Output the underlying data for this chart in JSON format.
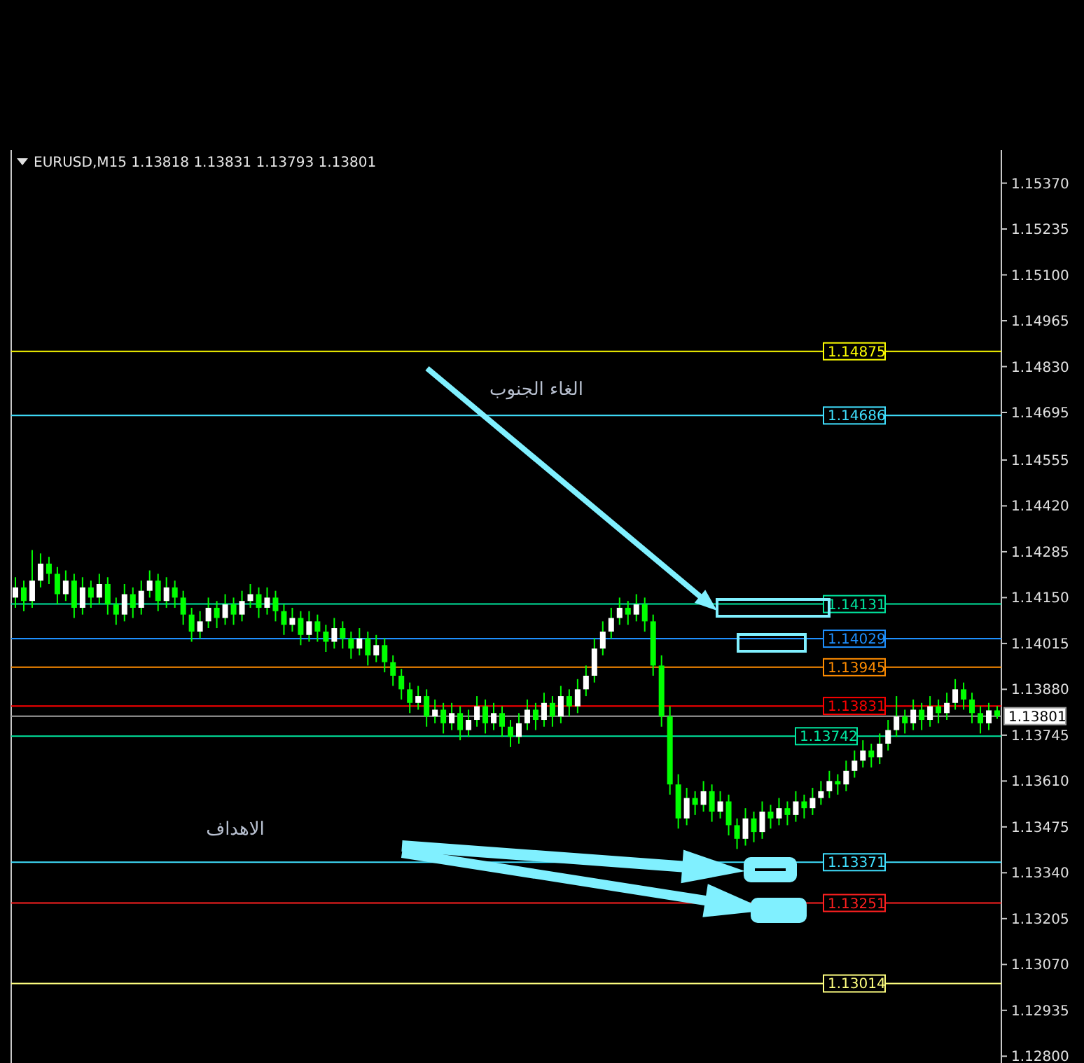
{
  "chart_data": {
    "type": "candlestick",
    "title": "EURUSD,M15  1.13818 1.13831 1.13793 1.13801",
    "annotations": [
      "الغاء الجنوب",
      "الاهداف"
    ],
    "tick_labels": "y",
    "ylim": [
      1.1278,
      1.15468
    ],
    "yticks": [
      {
        "value": 1.1537,
        "label": "1.15370"
      },
      {
        "value": 1.15235,
        "label": "1.15235"
      },
      {
        "value": 1.151,
        "label": "1.15100"
      },
      {
        "value": 1.14965,
        "label": "1.14965"
      },
      {
        "value": 1.1483,
        "label": "1.14830"
      },
      {
        "value": 1.14695,
        "label": "1.14695"
      },
      {
        "value": 1.14555,
        "label": "1.14555"
      },
      {
        "value": 1.1442,
        "label": "1.14420"
      },
      {
        "value": 1.14285,
        "label": "1.14285"
      },
      {
        "value": 1.1415,
        "label": "1.14150"
      },
      {
        "value": 1.14015,
        "label": "1.14015"
      },
      {
        "value": 1.1388,
        "label": "1.13880"
      },
      {
        "value": 1.13745,
        "label": "1.13745"
      },
      {
        "value": 1.1361,
        "label": "1.13610"
      },
      {
        "value": 1.13475,
        "label": "1.13475"
      },
      {
        "value": 1.1334,
        "label": "1.13340"
      },
      {
        "value": 1.13205,
        "label": "1.13205"
      },
      {
        "value": 1.1307,
        "label": "1.13070"
      },
      {
        "value": 1.12935,
        "label": "1.12935"
      },
      {
        "value": 1.128,
        "label": "1.12800"
      }
    ],
    "categories": [
      null,
      null,
      null,
      null,
      null,
      null,
      null,
      null,
      null,
      null,
      null,
      null,
      null,
      null,
      null,
      null,
      null,
      null,
      null,
      null,
      null,
      null,
      null,
      null,
      null,
      null,
      null,
      null,
      null,
      null,
      null,
      null,
      null,
      null,
      null,
      null,
      null,
      null,
      null,
      null,
      null,
      null,
      null,
      null,
      null,
      null,
      null,
      null,
      null,
      null,
      null,
      null,
      null,
      null,
      null,
      null,
      null,
      null,
      null,
      null,
      null,
      null,
      null,
      null,
      null,
      null,
      null,
      null,
      null,
      null,
      null,
      null,
      null,
      null,
      null,
      null,
      null,
      null,
      null,
      null,
      null,
      null,
      null,
      null,
      null,
      null,
      null,
      null,
      null,
      null,
      null,
      null,
      null,
      null,
      null,
      null,
      null,
      null,
      null,
      null,
      null,
      null,
      null,
      null,
      null,
      null,
      null,
      null,
      null,
      null,
      null,
      null,
      null,
      null,
      null,
      null,
      null,
      null
    ],
    "ohlc": [
      [
        1.1415,
        1.1421,
        1.1412,
        1.1418
      ],
      [
        1.1418,
        1.142,
        1.1411,
        1.1414
      ],
      [
        1.1414,
        1.1429,
        1.1412,
        1.142
      ],
      [
        1.142,
        1.1428,
        1.1418,
        1.1425
      ],
      [
        1.1425,
        1.1427,
        1.1419,
        1.1422
      ],
      [
        1.1422,
        1.1424,
        1.1413,
        1.1416
      ],
      [
        1.1416,
        1.1423,
        1.1414,
        1.142
      ],
      [
        1.142,
        1.1422,
        1.1409,
        1.1412
      ],
      [
        1.1412,
        1.1421,
        1.141,
        1.1418
      ],
      [
        1.1418,
        1.142,
        1.1412,
        1.1415
      ],
      [
        1.1415,
        1.1422,
        1.1413,
        1.1419
      ],
      [
        1.1419,
        1.1421,
        1.141,
        1.1413
      ],
      [
        1.1413,
        1.1415,
        1.1407,
        1.141
      ],
      [
        1.141,
        1.1419,
        1.1408,
        1.1416
      ],
      [
        1.1416,
        1.1418,
        1.1409,
        1.1412
      ],
      [
        1.1412,
        1.142,
        1.141,
        1.1417
      ],
      [
        1.1417,
        1.1423,
        1.1415,
        1.142
      ],
      [
        1.142,
        1.1422,
        1.1411,
        1.1414
      ],
      [
        1.1414,
        1.1421,
        1.1412,
        1.1418
      ],
      [
        1.1418,
        1.142,
        1.1412,
        1.1415
      ],
      [
        1.1415,
        1.1417,
        1.1407,
        1.141
      ],
      [
        1.141,
        1.1412,
        1.1402,
        1.1405
      ],
      [
        1.1405,
        1.1411,
        1.1403,
        1.1408
      ],
      [
        1.1408,
        1.1415,
        1.1406,
        1.1412
      ],
      [
        1.1412,
        1.1414,
        1.1406,
        1.1409
      ],
      [
        1.1409,
        1.1416,
        1.1407,
        1.1413
      ],
      [
        1.1413,
        1.1415,
        1.1407,
        1.141
      ],
      [
        1.141,
        1.1417,
        1.1408,
        1.1414
      ],
      [
        1.1414,
        1.1419,
        1.1412,
        1.1416
      ],
      [
        1.1416,
        1.1418,
        1.1409,
        1.1412
      ],
      [
        1.1412,
        1.1418,
        1.141,
        1.1415
      ],
      [
        1.1415,
        1.1417,
        1.1408,
        1.1411
      ],
      [
        1.1411,
        1.1413,
        1.1404,
        1.1407
      ],
      [
        1.1407,
        1.1412,
        1.1405,
        1.1409
      ],
      [
        1.1409,
        1.1411,
        1.1401,
        1.1404
      ],
      [
        1.1404,
        1.1411,
        1.1402,
        1.1408
      ],
      [
        1.1408,
        1.141,
        1.1402,
        1.1405
      ],
      [
        1.1405,
        1.1407,
        1.1399,
        1.1402
      ],
      [
        1.1402,
        1.1409,
        1.14,
        1.1406
      ],
      [
        1.1406,
        1.1408,
        1.14,
        1.1403
      ],
      [
        1.1403,
        1.1405,
        1.1397,
        1.14
      ],
      [
        1.14,
        1.1406,
        1.1398,
        1.1403
      ],
      [
        1.1403,
        1.1405,
        1.1395,
        1.1398
      ],
      [
        1.1398,
        1.1404,
        1.1396,
        1.1401
      ],
      [
        1.1401,
        1.1403,
        1.1393,
        1.1396
      ],
      [
        1.1396,
        1.1398,
        1.1389,
        1.1392
      ],
      [
        1.1392,
        1.1394,
        1.1385,
        1.1388
      ],
      [
        1.1388,
        1.139,
        1.1381,
        1.1384
      ],
      [
        1.1384,
        1.1389,
        1.1382,
        1.1386
      ],
      [
        1.1386,
        1.1388,
        1.1377,
        1.138
      ],
      [
        1.138,
        1.1385,
        1.1378,
        1.1382
      ],
      [
        1.1382,
        1.1384,
        1.1375,
        1.1378
      ],
      [
        1.1378,
        1.1384,
        1.1376,
        1.1381
      ],
      [
        1.1381,
        1.1383,
        1.1373,
        1.1376
      ],
      [
        1.1376,
        1.1382,
        1.1374,
        1.1379
      ],
      [
        1.1379,
        1.1386,
        1.1377,
        1.1383
      ],
      [
        1.1383,
        1.1385,
        1.1375,
        1.1378
      ],
      [
        1.1378,
        1.1384,
        1.1376,
        1.1381
      ],
      [
        1.1381,
        1.1383,
        1.1374,
        1.1377
      ],
      [
        1.1377,
        1.1379,
        1.1371,
        1.1374
      ],
      [
        1.1374,
        1.1381,
        1.1372,
        1.1378
      ],
      [
        1.1378,
        1.1385,
        1.1376,
        1.1382
      ],
      [
        1.1382,
        1.1384,
        1.1376,
        1.1379
      ],
      [
        1.1379,
        1.1387,
        1.1377,
        1.1384
      ],
      [
        1.1384,
        1.1386,
        1.1377,
        1.138
      ],
      [
        1.138,
        1.1389,
        1.1378,
        1.1386
      ],
      [
        1.1386,
        1.1388,
        1.138,
        1.1383
      ],
      [
        1.1383,
        1.1391,
        1.1381,
        1.1388
      ],
      [
        1.1388,
        1.1395,
        1.1386,
        1.1392
      ],
      [
        1.1392,
        1.1403,
        1.139,
        1.14
      ],
      [
        1.14,
        1.1408,
        1.1398,
        1.1405
      ],
      [
        1.1405,
        1.1412,
        1.1403,
        1.1409
      ],
      [
        1.1409,
        1.1415,
        1.1407,
        1.1412
      ],
      [
        1.1412,
        1.1414,
        1.1407,
        1.141
      ],
      [
        1.141,
        1.1416,
        1.1408,
        1.1413
      ],
      [
        1.1413,
        1.1415,
        1.1405,
        1.1408
      ],
      [
        1.1408,
        1.141,
        1.1392,
        1.1395
      ],
      [
        1.1395,
        1.1398,
        1.1377,
        1.138
      ],
      [
        1.138,
        1.1383,
        1.1357,
        1.136
      ],
      [
        1.136,
        1.1363,
        1.1347,
        1.135
      ],
      [
        1.135,
        1.1359,
        1.1348,
        1.1356
      ],
      [
        1.1356,
        1.1358,
        1.1351,
        1.1354
      ],
      [
        1.1354,
        1.1361,
        1.1352,
        1.1358
      ],
      [
        1.1358,
        1.136,
        1.1349,
        1.1352
      ],
      [
        1.1352,
        1.1358,
        1.135,
        1.1355
      ],
      [
        1.1355,
        1.1357,
        1.1345,
        1.1348
      ],
      [
        1.1348,
        1.135,
        1.1341,
        1.1344
      ],
      [
        1.1344,
        1.1353,
        1.1342,
        1.135
      ],
      [
        1.135,
        1.1352,
        1.1343,
        1.1346
      ],
      [
        1.1346,
        1.1355,
        1.1344,
        1.1352
      ],
      [
        1.1352,
        1.1354,
        1.1347,
        1.135
      ],
      [
        1.135,
        1.1356,
        1.1348,
        1.1353
      ],
      [
        1.1353,
        1.1355,
        1.1348,
        1.1351
      ],
      [
        1.1351,
        1.1358,
        1.1349,
        1.1355
      ],
      [
        1.1355,
        1.1357,
        1.135,
        1.1353
      ],
      [
        1.1353,
        1.1359,
        1.1351,
        1.1356
      ],
      [
        1.1356,
        1.1361,
        1.1354,
        1.1358
      ],
      [
        1.1358,
        1.1364,
        1.1356,
        1.1361
      ],
      [
        1.1361,
        1.1363,
        1.1357,
        1.136
      ],
      [
        1.136,
        1.1367,
        1.1358,
        1.1364
      ],
      [
        1.1364,
        1.137,
        1.1362,
        1.1367
      ],
      [
        1.1367,
        1.1373,
        1.1365,
        1.137
      ],
      [
        1.137,
        1.1372,
        1.1365,
        1.1368
      ],
      [
        1.1368,
        1.1375,
        1.1366,
        1.1372
      ],
      [
        1.1372,
        1.1379,
        1.137,
        1.1376
      ],
      [
        1.1376,
        1.1386,
        1.1374,
        1.138
      ],
      [
        1.138,
        1.1382,
        1.1375,
        1.1378
      ],
      [
        1.1378,
        1.1385,
        1.1376,
        1.1382
      ],
      [
        1.1382,
        1.1384,
        1.1376,
        1.1379
      ],
      [
        1.1379,
        1.1386,
        1.1377,
        1.1383
      ],
      [
        1.1383,
        1.1385,
        1.1378,
        1.1381
      ],
      [
        1.1381,
        1.1387,
        1.1379,
        1.1384
      ],
      [
        1.1384,
        1.1391,
        1.1382,
        1.1388
      ],
      [
        1.1388,
        1.139,
        1.1382,
        1.1385
      ],
      [
        1.1385,
        1.1387,
        1.1378,
        1.1381
      ],
      [
        1.1381,
        1.1383,
        1.1375,
        1.1378
      ],
      [
        1.1378,
        1.1384,
        1.1376,
        1.13818
      ],
      [
        1.13818,
        1.13831,
        1.13793,
        1.13801
      ]
    ],
    "ref_lines": [
      {
        "axis": "y",
        "value": 1.14875,
        "label": "1.14875",
        "color": "#ffff00"
      },
      {
        "axis": "y",
        "value": 1.14686,
        "label": "1.14686",
        "color": "#40e0ff"
      },
      {
        "axis": "y",
        "value": 1.14131,
        "label": "1.14131",
        "color": "#00e8a0"
      },
      {
        "axis": "y",
        "value": 1.14029,
        "label": "1.14029",
        "color": "#1e90ff"
      },
      {
        "axis": "y",
        "value": 1.13945,
        "label": "1.13945",
        "color": "#ff8c00"
      },
      {
        "axis": "y",
        "value": 1.13831,
        "label": "1.13831",
        "color": "#ff0000"
      },
      {
        "axis": "y",
        "value": 1.13801,
        "label": "1.13801",
        "color": "#a0a0a0"
      },
      {
        "axis": "y",
        "value": 1.13742,
        "label": "1.13742",
        "color": "#00e8a0"
      },
      {
        "axis": "y",
        "value": 1.13371,
        "label": "1.13371",
        "color": "#40e0ff"
      },
      {
        "axis": "y",
        "value": 1.13251,
        "label": "1.13251",
        "color": "#ff2020"
      },
      {
        "axis": "y",
        "value": 1.13014,
        "label": "1.13014",
        "color": "#ffff80"
      }
    ]
  }
}
